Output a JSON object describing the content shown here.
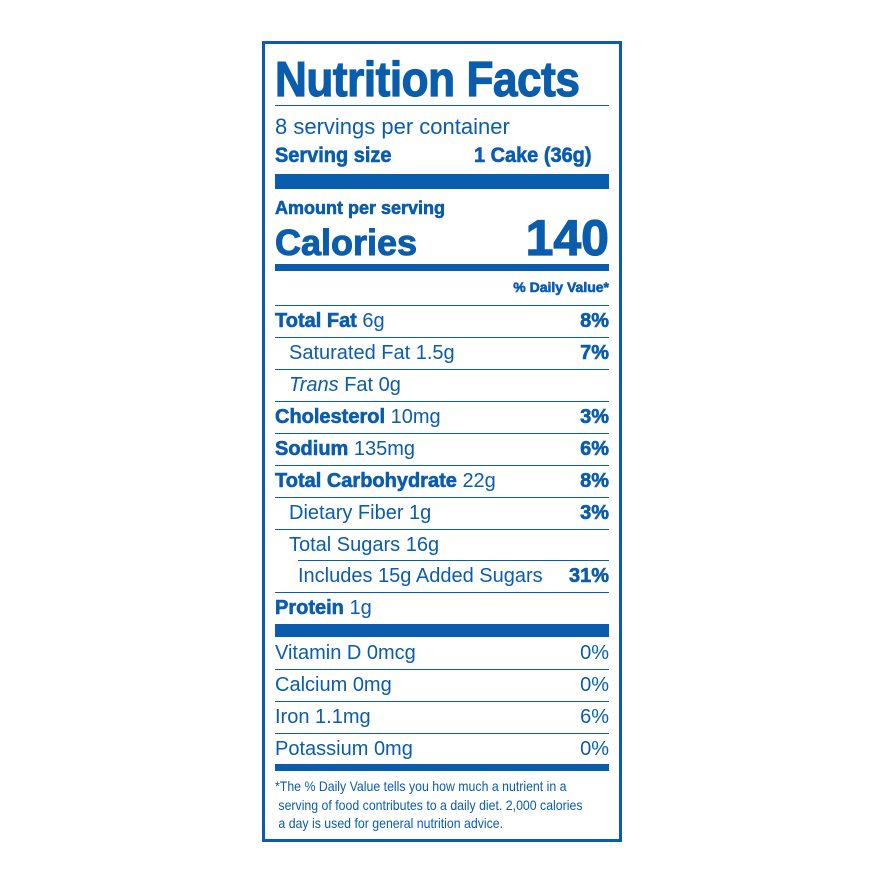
{
  "title": "Nutrition Facts",
  "servings_per_container": "8 servings per container",
  "serving_size": {
    "label": "Serving size",
    "value": "1 Cake (36g)"
  },
  "amount_per_serving": "Amount per serving",
  "calories": {
    "label": "Calories",
    "value": "140"
  },
  "daily_value_header": "% Daily Value*",
  "nutrients": [
    {
      "name": "Total Fat",
      "amount": "6g",
      "dv": "8%"
    },
    {
      "name": "Saturated Fat",
      "amount": "1.5g",
      "dv": "7%"
    },
    {
      "name": "Trans",
      "name_rest": "Fat",
      "amount": "0g",
      "dv": ""
    },
    {
      "name": "Cholesterol",
      "amount": "10mg",
      "dv": "3%"
    },
    {
      "name": "Sodium",
      "amount": "135mg",
      "dv": "6%"
    },
    {
      "name": "Total Carbohydrate",
      "amount": "22g",
      "dv": "8%"
    },
    {
      "name": "Dietary Fiber",
      "amount": "1g",
      "dv": "3%"
    },
    {
      "name": "Total Sugars",
      "amount": "16g",
      "dv": ""
    },
    {
      "name": "Includes 15g Added Sugars",
      "amount": "",
      "dv": "31%"
    },
    {
      "name": "Protein",
      "amount": "1g",
      "dv": ""
    }
  ],
  "vitamins": [
    {
      "name": "Vitamin D",
      "amount": "0mcg",
      "dv": "0%"
    },
    {
      "name": "Calcium",
      "amount": "0mg",
      "dv": "0%"
    },
    {
      "name": "Iron",
      "amount": "1.1mg",
      "dv": "6%"
    },
    {
      "name": "Potassium",
      "amount": "0mg",
      "dv": "0%"
    }
  ],
  "footnote": [
    "*The % Daily Value tells you how much a nutrient in a",
    " serving of food contributes to a daily diet. 2,000 calories",
    " a day is used for general nutrition advice."
  ],
  "colors": {
    "ink": "#0a5cad",
    "background": "#ffffff"
  }
}
